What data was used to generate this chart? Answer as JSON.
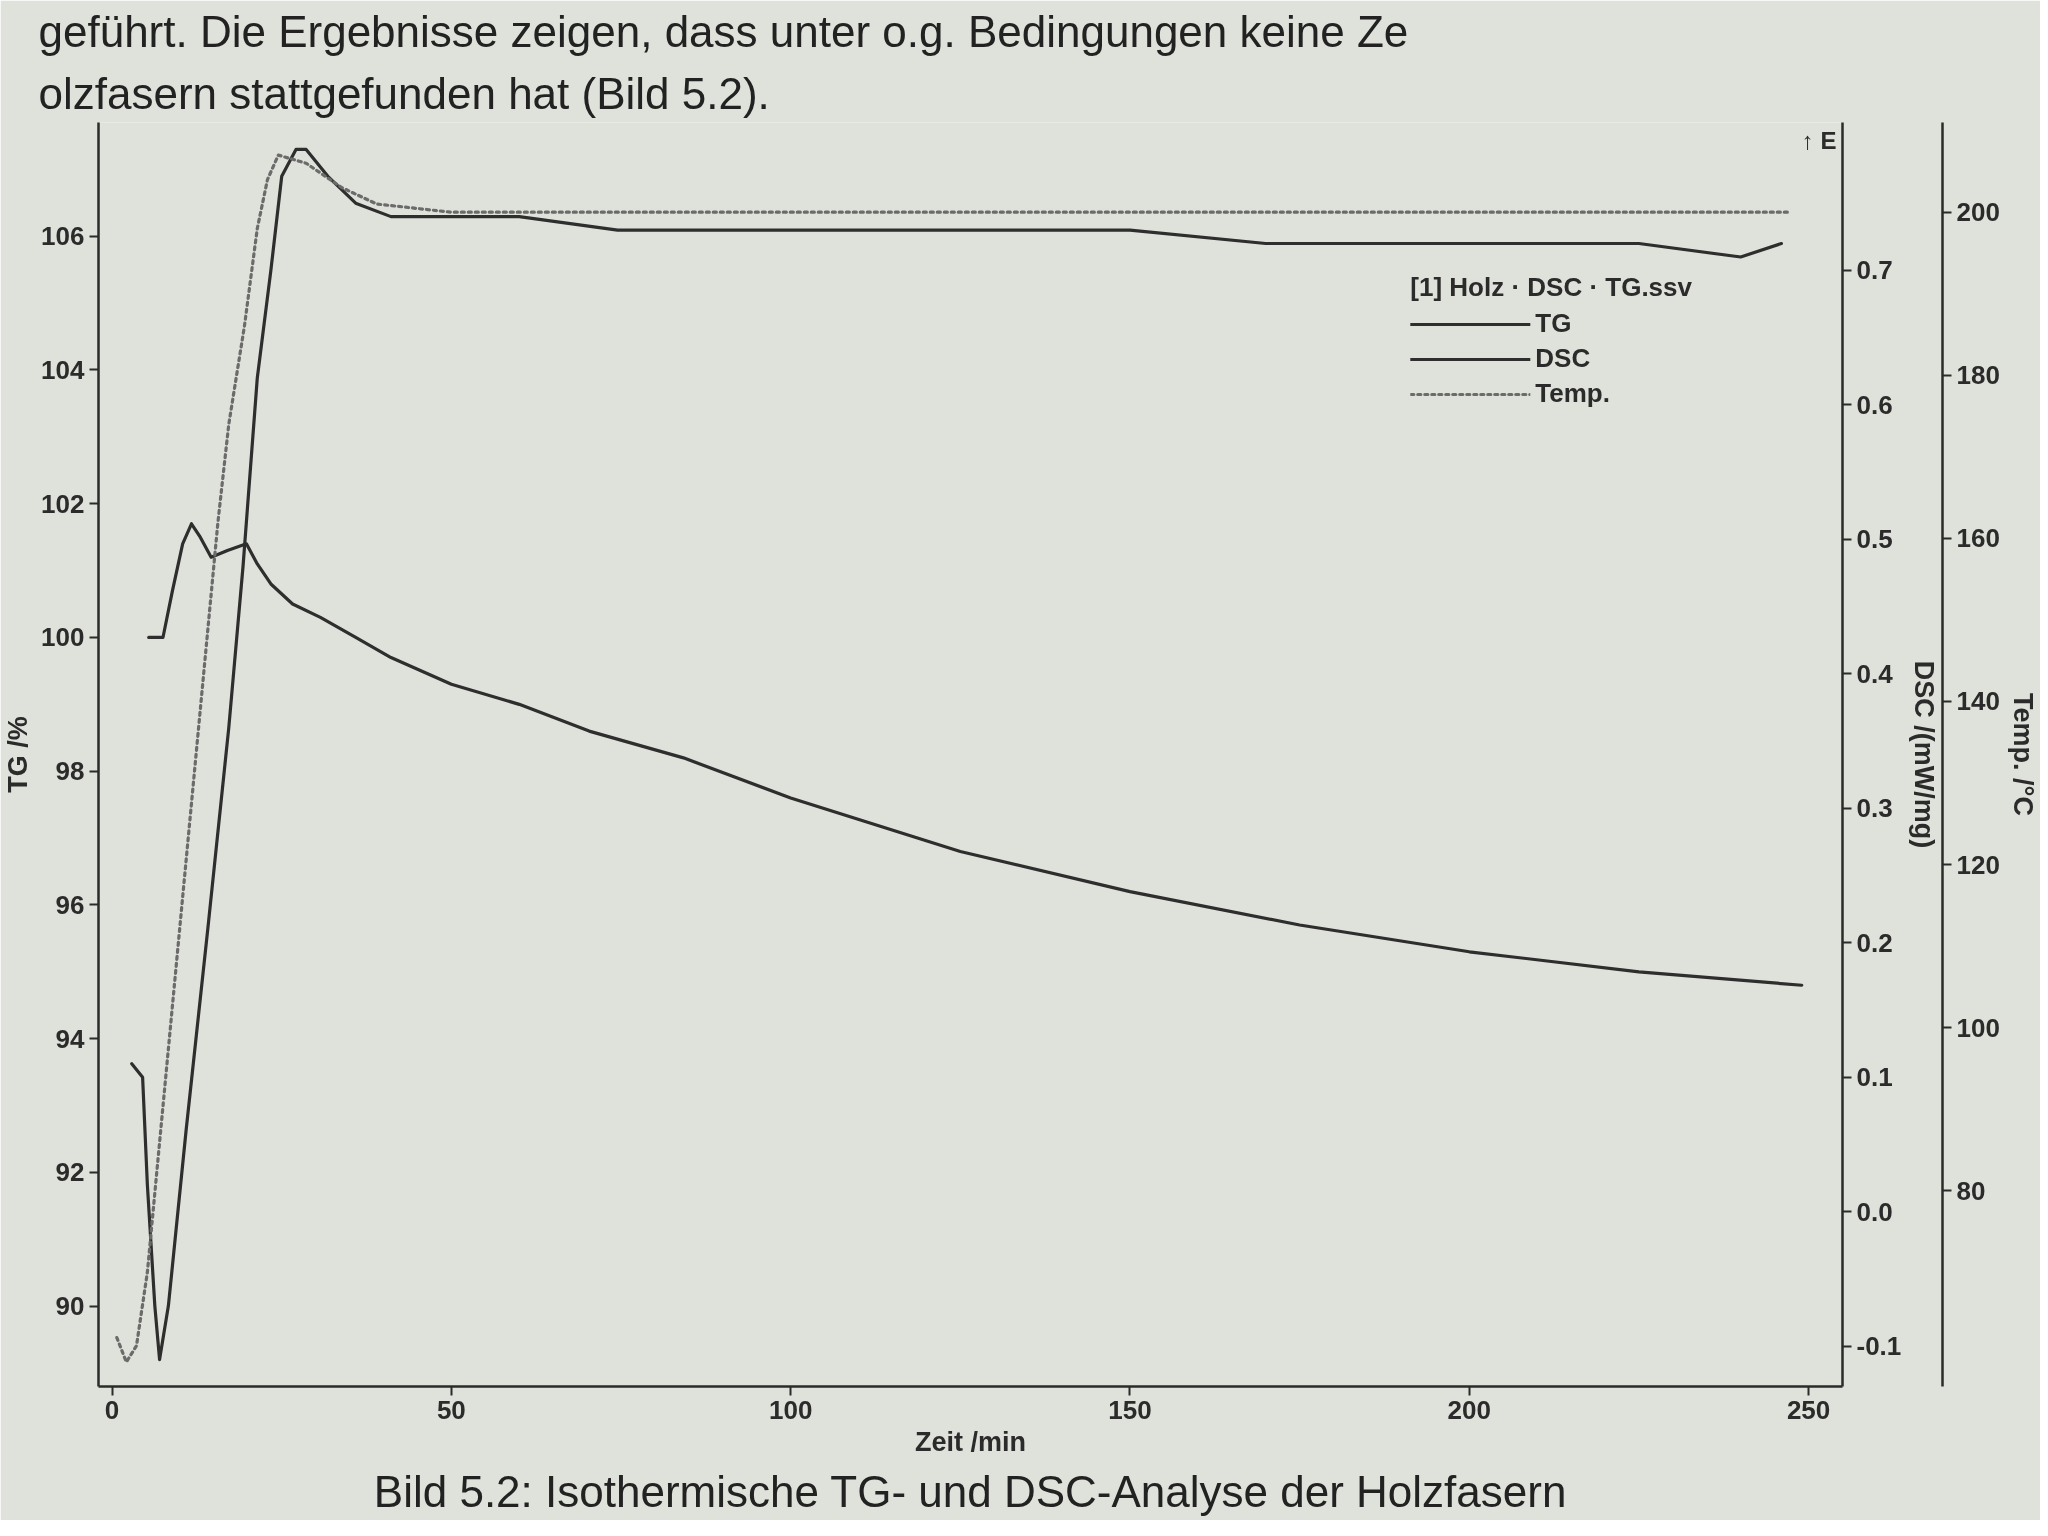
{
  "chart_data": {
    "type": "line",
    "title": "Bild 5.2: Isothermische TG- und DSC-Analyse der Holzfasern",
    "subtitle": "geführt. Die Ergebnisse zeigen, dass unter o.g. Bedingungen keine Ze\nolzfasern stattgefunden hat (Bild 5.2).",
    "annotations": [
      "↑ E"
    ],
    "xlabel": "Zeit /min",
    "ylabel": "TG /%",
    "y2label": "DSC /(mW/mg)",
    "y3label": "Temp. /°C",
    "legend_title": "[1] Holz · DSC · TG.ssv",
    "legend": "top right",
    "xlim": [
      -2,
      255
    ],
    "xticks": [
      0,
      50,
      100,
      150,
      200,
      250
    ],
    "ylim": [
      88.8,
      107.7
    ],
    "yticks": [
      90,
      92,
      94,
      96,
      98,
      100,
      102,
      104,
      106
    ],
    "y2lim": [
      -0.13,
      0.81
    ],
    "y2ticks": [
      -0.1,
      {
        "value": 0,
        "label": "0.0"
      },
      0.1,
      0.2,
      0.3,
      0.4,
      0.5,
      0.6,
      0.7
    ],
    "y3lim": [
      56,
      211
    ],
    "y3ticks": [
      80,
      100,
      120,
      140,
      160,
      180,
      200
    ],
    "series": [
      {
        "name": "TG",
        "color": "#2e2e2e",
        "line_style": "solid",
        "x": [
          5.4,
          7.5,
          8.9,
          10.4,
          11.7,
          13,
          14.6,
          17,
          19.8,
          21.4,
          23.4,
          26.6,
          30.7,
          35.9,
          41.1,
          50,
          60,
          70.3,
          84.2,
          100,
          125,
          150,
          175,
          200,
          225,
          249
        ],
        "values": [
          100.0,
          100.0,
          100.7,
          101.4,
          101.7,
          101.5,
          101.2,
          101.3,
          101.4,
          101.1,
          100.8,
          100.5,
          100.3,
          100.0,
          99.7,
          99.3,
          99.0,
          98.6,
          98.2,
          97.6,
          96.8,
          96.2,
          95.7,
          95.3,
          95.0,
          94.8
        ]
      },
      {
        "name": "DSC",
        "color": "#2e2e2e",
        "line_style": "solid",
        "axis": "y2",
        "x": [
          2.9,
          4.5,
          5.2,
          6.3,
          7.0,
          8.3,
          10.9,
          14.1,
          17.2,
          19.3,
          21.4,
          23.4,
          25,
          27.1,
          28.6,
          31.8,
          35.9,
          41.1,
          50,
          60,
          74.5,
          100,
          122,
          150,
          170,
          206,
          225,
          240,
          246
        ],
        "values": [
          0.11,
          0.1,
          0.02,
          -0.07,
          -0.11,
          -0.07,
          0.06,
          0.21,
          0.36,
          0.48,
          0.62,
          0.7,
          0.77,
          0.79,
          0.79,
          0.77,
          0.75,
          0.74,
          0.74,
          0.74,
          0.73,
          0.73,
          0.73,
          0.73,
          0.72,
          0.72,
          0.72,
          0.71,
          0.72
        ]
      },
      {
        "name": "Temp.",
        "color": "#6b6b6b",
        "line_style": "dotted",
        "axis": "y3",
        "x": [
          0.7,
          2.1,
          3.6,
          5.2,
          7.8,
          10.4,
          13,
          15.6,
          17.2,
          19.5,
          21.4,
          22.9,
          24.5,
          28.6,
          33.9,
          39,
          50,
          100,
          150,
          200,
          247
        ],
        "values": [
          62,
          59,
          61,
          70,
          93,
          116,
          139,
          162,
          174,
          186,
          198,
          204,
          207,
          206,
          203,
          201,
          200,
          200,
          200,
          200,
          200
        ]
      }
    ]
  }
}
